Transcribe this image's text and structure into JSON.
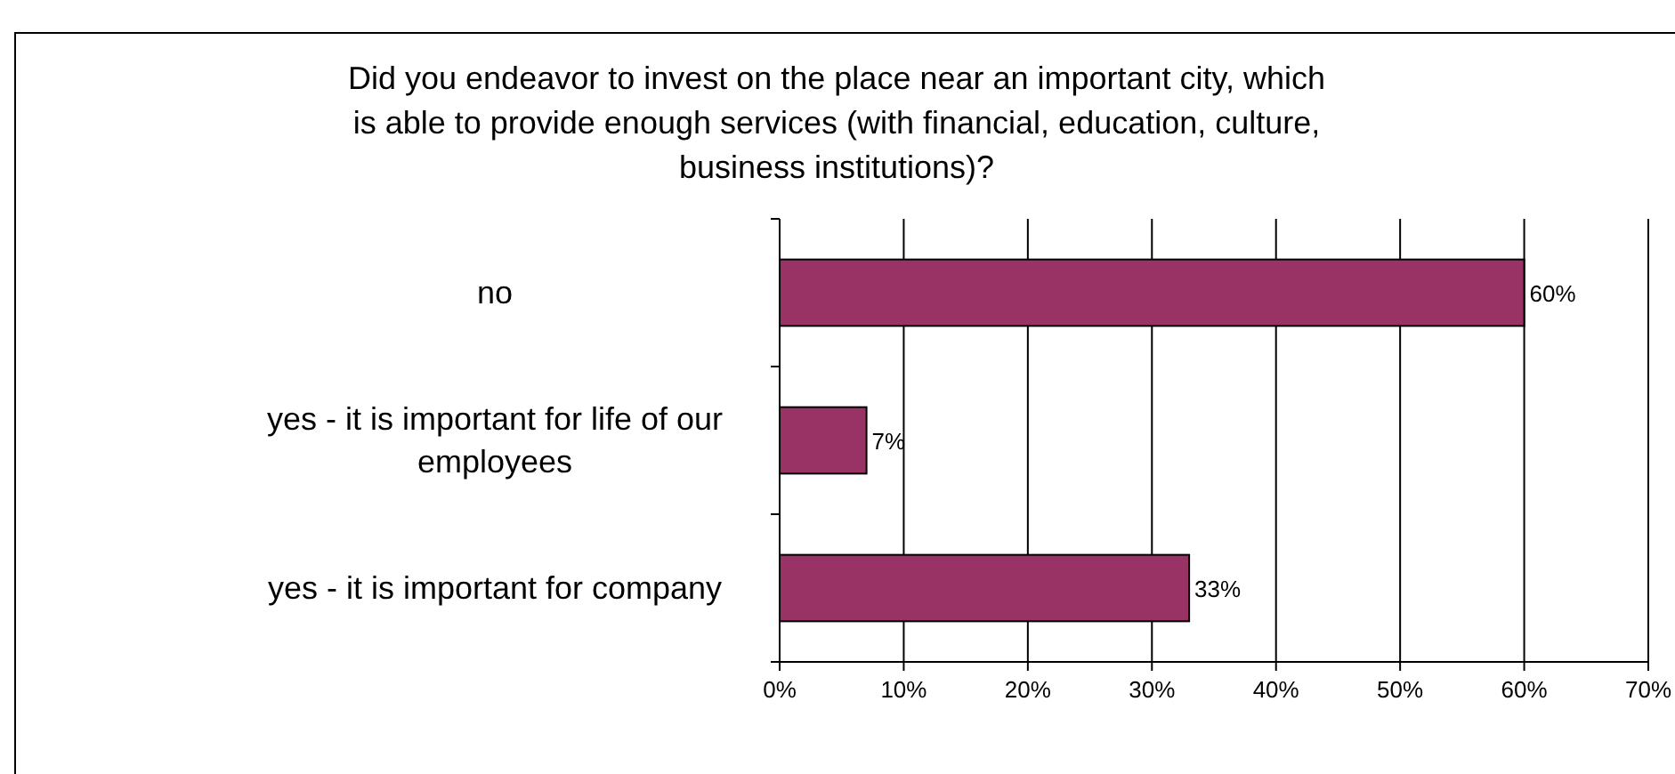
{
  "chart_data": {
    "type": "bar",
    "orientation": "horizontal",
    "title": "Did you endeavor to invest on the place near an important city, which is able to provide enough services (with financial, education, culture, business institutions)?",
    "categories": [
      "no",
      "yes - it is important for life of our employees",
      "yes - it is important for company"
    ],
    "values": [
      60,
      7,
      33
    ],
    "value_labels": [
      "60%",
      "7%",
      "33%"
    ],
    "color": "#993366",
    "xlim": [
      0,
      70
    ],
    "xticks": [
      {
        "value": 0,
        "label": "0%"
      },
      {
        "value": 10,
        "label": "10%"
      },
      {
        "value": 20,
        "label": "20%"
      },
      {
        "value": 30,
        "label": "30%"
      },
      {
        "value": 40,
        "label": "40%"
      },
      {
        "value": 50,
        "label": "50%"
      },
      {
        "value": 60,
        "label": "60%"
      },
      {
        "value": 70,
        "label": "70%"
      }
    ],
    "grid": "x"
  }
}
